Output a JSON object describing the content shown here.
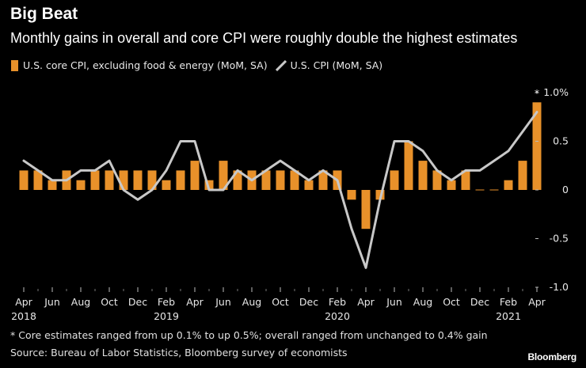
{
  "title": "Big Beat",
  "subtitle": "Monthly gains in overall and core CPI were roughly double the highest estimates",
  "legend": {
    "core_label": "U.S. core CPI, excluding food & energy (MoM, SA)",
    "cpi_label": "U.S. CPI (MoM, SA)"
  },
  "footnote": "* Core estimates ranged from up 0.1% to up 0.5%; overall ranged from unchanged to 0.4% gain",
  "source": "Source: Bureau of Labor Statistics, Bloomberg survey of economists",
  "brand": "Bloomberg",
  "colors": {
    "core": "#e8912a",
    "cpi": "#c8c8c8",
    "background": "#000000"
  },
  "chart_data": {
    "type": "bar",
    "title": "Big Beat",
    "xlabel": "",
    "ylabel": "",
    "ylim": [
      -1.0,
      1.0
    ],
    "y_ticks": [
      1.0,
      0.5,
      0,
      -0.5,
      -1.0
    ],
    "y_tick_labels": [
      "1.0%",
      "0.5",
      "0",
      "-0.5",
      "-1.0"
    ],
    "grid": false,
    "legend_position": "top-left",
    "categories": [
      "Apr 2018",
      "May 2018",
      "Jun 2018",
      "Jul 2018",
      "Aug 2018",
      "Sep 2018",
      "Oct 2018",
      "Nov 2018",
      "Dec 2018",
      "Jan 2019",
      "Feb 2019",
      "Mar 2019",
      "Apr 2019",
      "May 2019",
      "Jun 2019",
      "Jul 2019",
      "Aug 2019",
      "Sep 2019",
      "Oct 2019",
      "Nov 2019",
      "Dec 2019",
      "Jan 2020",
      "Feb 2020",
      "Mar 2020",
      "Apr 2020",
      "May 2020",
      "Jun 2020",
      "Jul 2020",
      "Aug 2020",
      "Sep 2020",
      "Oct 2020",
      "Nov 2020",
      "Dec 2020",
      "Jan 2021",
      "Feb 2021",
      "Mar 2021",
      "Apr 2021"
    ],
    "x_tick_labels": [
      {
        "index": 0,
        "month": "Apr",
        "year": "2018"
      },
      {
        "index": 2,
        "month": "Jun",
        "year": ""
      },
      {
        "index": 4,
        "month": "Aug",
        "year": ""
      },
      {
        "index": 6,
        "month": "Oct",
        "year": ""
      },
      {
        "index": 8,
        "month": "Dec",
        "year": ""
      },
      {
        "index": 10,
        "month": "Feb",
        "year": "2019"
      },
      {
        "index": 12,
        "month": "Apr",
        "year": ""
      },
      {
        "index": 14,
        "month": "Jun",
        "year": ""
      },
      {
        "index": 16,
        "month": "Aug",
        "year": ""
      },
      {
        "index": 18,
        "month": "Oct",
        "year": ""
      },
      {
        "index": 20,
        "month": "Dec",
        "year": ""
      },
      {
        "index": 22,
        "month": "Feb",
        "year": "2020"
      },
      {
        "index": 24,
        "month": "Apr",
        "year": ""
      },
      {
        "index": 26,
        "month": "Jun",
        "year": ""
      },
      {
        "index": 28,
        "month": "Aug",
        "year": ""
      },
      {
        "index": 30,
        "month": "Oct",
        "year": ""
      },
      {
        "index": 32,
        "month": "Dec",
        "year": ""
      },
      {
        "index": 34,
        "month": "Feb",
        "year": "2021"
      },
      {
        "index": 36,
        "month": "Apr",
        "year": ""
      }
    ],
    "series": [
      {
        "name": "U.S. core CPI, excluding food & energy (MoM, SA)",
        "kind": "bar",
        "values": [
          0.2,
          0.2,
          0.1,
          0.2,
          0.1,
          0.2,
          0.2,
          0.2,
          0.2,
          0.2,
          0.1,
          0.2,
          0.3,
          0.1,
          0.3,
          0.2,
          0.2,
          0.2,
          0.2,
          0.2,
          0.1,
          0.2,
          0.2,
          -0.1,
          -0.4,
          -0.1,
          0.2,
          0.5,
          0.3,
          0.2,
          0.1,
          0.2,
          0.0,
          0.0,
          0.1,
          0.3,
          0.9
        ]
      },
      {
        "name": "U.S. CPI (MoM, SA)",
        "kind": "line",
        "values": [
          0.3,
          0.2,
          0.1,
          0.1,
          0.2,
          0.2,
          0.3,
          0.0,
          -0.1,
          0.0,
          0.2,
          0.5,
          0.5,
          0.0,
          0.0,
          0.2,
          0.1,
          0.2,
          0.3,
          0.2,
          0.1,
          0.2,
          0.1,
          -0.4,
          -0.8,
          -0.1,
          0.5,
          0.5,
          0.4,
          0.2,
          0.1,
          0.2,
          0.2,
          0.3,
          0.4,
          0.6,
          0.8
        ]
      }
    ],
    "annotation": {
      "index": 36,
      "text": "*"
    }
  }
}
